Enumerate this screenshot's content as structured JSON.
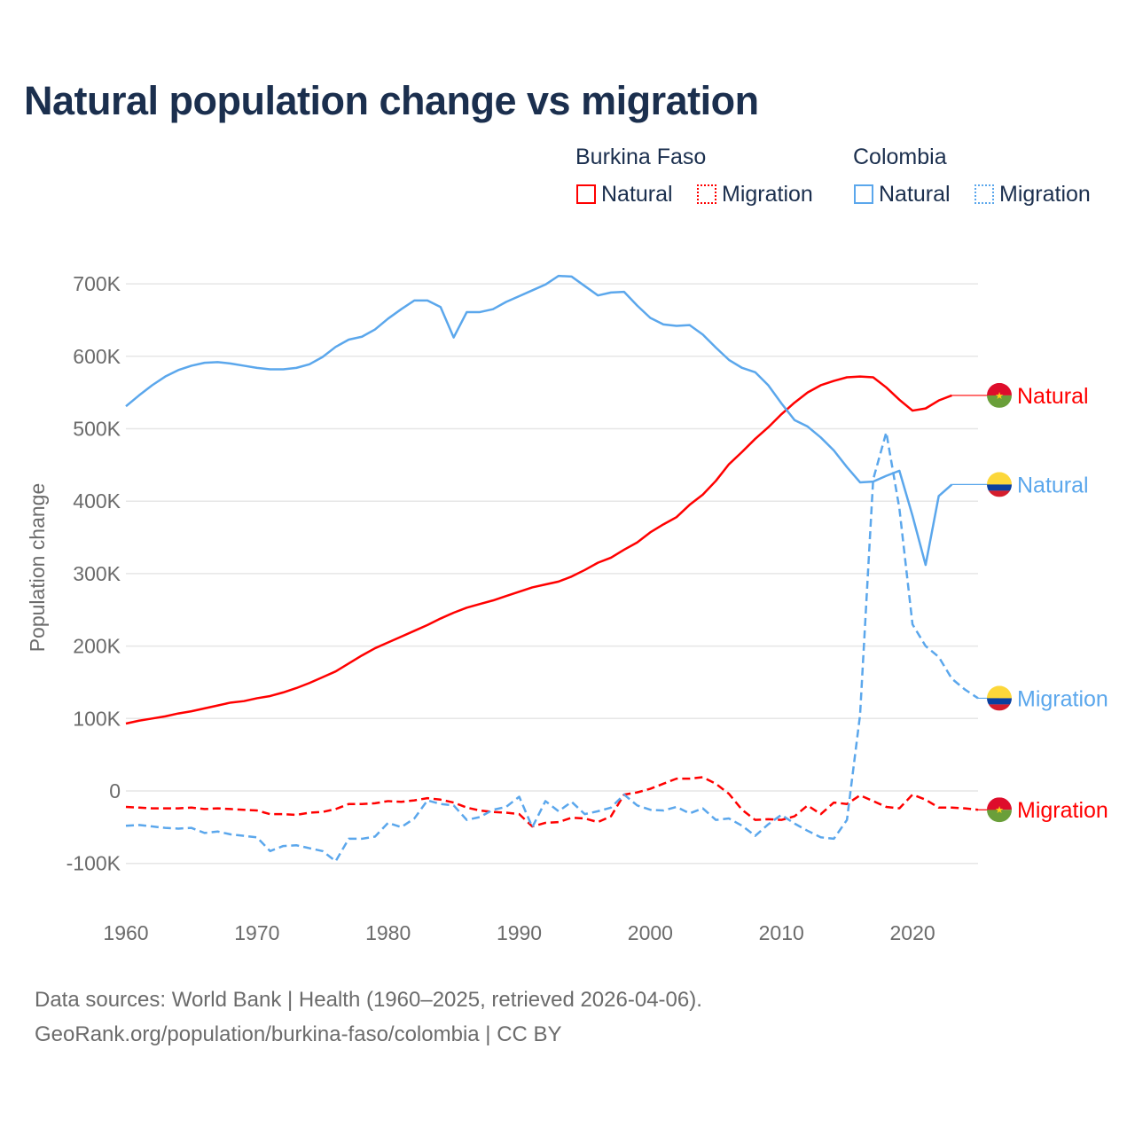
{
  "title": "Natural population change vs migration",
  "legend": {
    "groups": [
      {
        "name": "Burkina Faso",
        "items": [
          "Natural",
          "Migration"
        ]
      },
      {
        "name": "Colombia",
        "items": [
          "Natural",
          "Migration"
        ]
      }
    ]
  },
  "source_line1": "Data sources: World Bank | Health (1960–2025, retrieved 2026-04-06).",
  "source_line2": "GeoRank.org/population/burkina-faso/colombia | CC BY",
  "colors": {
    "burkina": "#ff0000",
    "colombia": "#5ba7ec",
    "grid": "#e6e6e6",
    "text": "#1b2f4e"
  },
  "chart_data": {
    "type": "line",
    "title": "Natural population change vs migration",
    "xlabel": "",
    "ylabel": "Population change",
    "xlim": [
      1960,
      2025
    ],
    "ylim": [
      -100000,
      700000
    ],
    "x_ticks": [
      1960,
      1970,
      1980,
      1990,
      2000,
      2010,
      2020
    ],
    "y_ticks": [
      {
        "v": -100,
        "label": "-100K"
      },
      {
        "v": 0,
        "label": "0"
      },
      {
        "v": 100,
        "label": "100K"
      },
      {
        "v": 200,
        "label": "200K"
      },
      {
        "v": 300,
        "label": "300K"
      },
      {
        "v": 400,
        "label": "400K"
      },
      {
        "v": 500,
        "label": "500K"
      },
      {
        "v": 600,
        "label": "600K"
      },
      {
        "v": 700,
        "label": "700K"
      }
    ],
    "units": "thousands",
    "start_year": 1960,
    "series": [
      {
        "name": "Burkina Faso Natural",
        "country": "burkina",
        "style": "solid",
        "end_label": "Natural",
        "values": [
          93,
          97,
          100,
          103,
          107,
          110,
          114,
          118,
          122,
          124,
          128,
          131,
          136,
          142,
          149,
          157,
          165,
          176,
          187,
          197,
          205,
          213,
          221,
          229,
          238,
          246,
          253,
          258,
          263,
          269,
          275,
          281,
          285,
          289,
          296,
          305,
          315,
          322,
          333,
          343,
          357,
          368,
          378,
          395,
          409,
          428,
          451,
          468,
          486,
          502,
          520,
          536,
          550,
          560,
          566,
          571,
          572,
          571,
          557,
          540,
          525,
          528,
          539,
          546
        ]
      },
      {
        "name": "Burkina Faso Migration",
        "country": "burkina",
        "style": "dashed",
        "end_label": "Migration",
        "values": [
          -22,
          -23,
          -24,
          -24,
          -24,
          -23,
          -25,
          -24,
          -25,
          -26,
          -27,
          -32,
          -32,
          -33,
          -30,
          -29,
          -25,
          -18,
          -18,
          -17,
          -14,
          -15,
          -13,
          -10,
          -12,
          -16,
          -23,
          -27,
          -29,
          -30,
          -32,
          -49,
          -44,
          -43,
          -37,
          -38,
          -43,
          -35,
          -5,
          -2,
          3,
          10,
          17,
          17,
          19,
          10,
          -4,
          -26,
          -40,
          -39,
          -40,
          -35,
          -20,
          -32,
          -16,
          -18,
          -6,
          -14,
          -22,
          -24,
          -5,
          -12,
          -23,
          -23,
          -24,
          -26
        ]
      },
      {
        "name": "Colombia Natural",
        "country": "colombia",
        "style": "solid",
        "end_label": "Natural",
        "values": [
          531,
          546,
          560,
          572,
          581,
          587,
          591,
          592,
          590,
          587,
          584,
          582,
          582,
          584,
          589,
          599,
          613,
          623,
          627,
          637,
          652,
          665,
          677,
          677,
          668,
          626,
          661,
          661,
          665,
          675,
          683,
          691,
          699,
          711,
          710,
          697,
          684,
          688,
          689,
          670,
          653,
          644,
          642,
          643,
          630,
          612,
          595,
          584,
          578,
          560,
          535,
          512,
          503,
          488,
          470,
          447,
          426,
          427,
          435,
          442,
          380,
          312,
          407,
          423
        ]
      },
      {
        "name": "Colombia Migration",
        "country": "colombia",
        "style": "dashed",
        "end_label": "Migration",
        "values": [
          -48,
          -47,
          -49,
          -51,
          -52,
          -51,
          -58,
          -56,
          -60,
          -62,
          -64,
          -83,
          -76,
          -75,
          -79,
          -83,
          -97,
          -66,
          -66,
          -63,
          -44,
          -50,
          -38,
          -13,
          -18,
          -20,
          -40,
          -36,
          -26,
          -22,
          -8,
          -50,
          -14,
          -28,
          -15,
          -32,
          -28,
          -23,
          -5,
          -20,
          -26,
          -27,
          -22,
          -31,
          -24,
          -40,
          -38,
          -48,
          -62,
          -46,
          -33,
          -45,
          -55,
          -64,
          -66,
          -40,
          105,
          430,
          495,
          390,
          230,
          200,
          185,
          155,
          140,
          128
        ]
      }
    ]
  }
}
